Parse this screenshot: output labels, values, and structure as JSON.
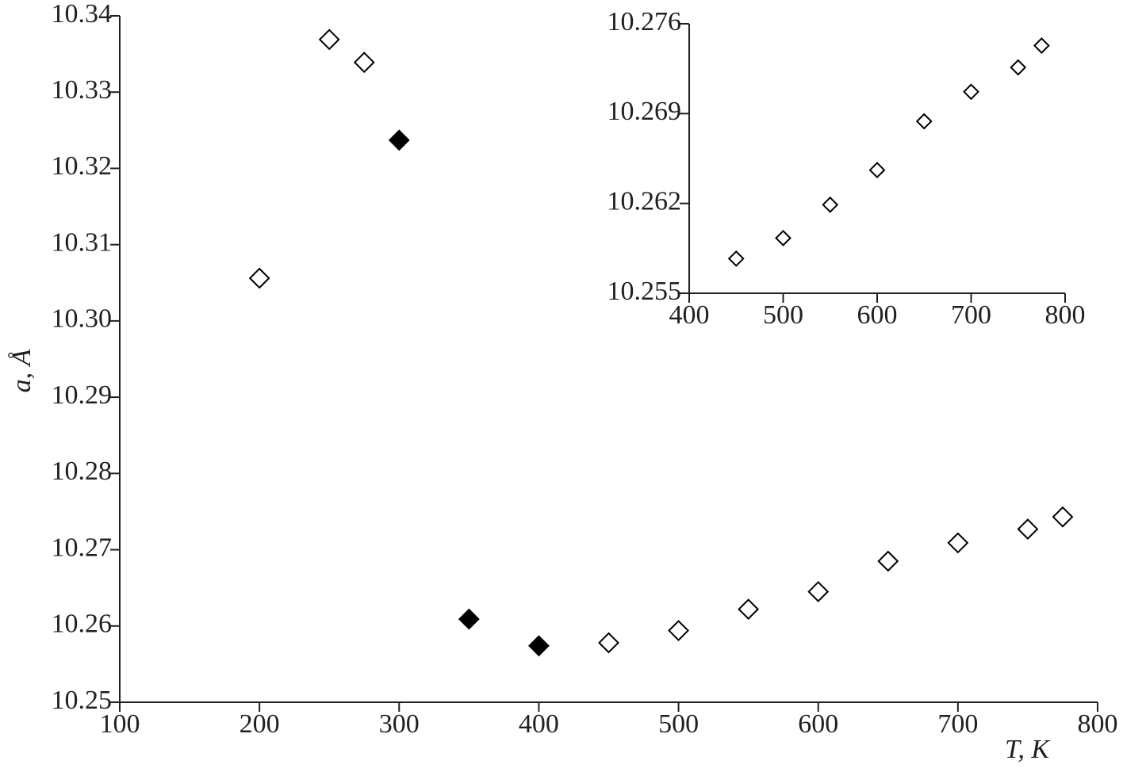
{
  "chart_data": [
    {
      "type": "scatter",
      "xlabel": "T, K",
      "ylabel": "a, Å",
      "xlim": [
        100,
        800
      ],
      "ylim": [
        10.25,
        10.34
      ],
      "xticks": [
        100,
        200,
        300,
        400,
        500,
        600,
        700,
        800
      ],
      "yticks": [
        10.25,
        10.26,
        10.27,
        10.28,
        10.29,
        {
          "value": 10.3,
          "label": "10.30"
        },
        10.31,
        10.32,
        10.33,
        10.34
      ],
      "series": [
        {
          "color": "#000000",
          "marker_fill": "#ffffff",
          "x": [
            200,
            250,
            275,
            450,
            500,
            550,
            600,
            650,
            700,
            750,
            775
          ],
          "values": [
            10.3056,
            10.3369,
            10.3339,
            10.2578,
            10.2594,
            10.2622,
            10.2645,
            10.2685,
            10.2709,
            10.2727,
            10.2743
          ]
        },
        {
          "color": "#000000",
          "marker_fill": "#000000",
          "x": [
            300,
            350,
            400
          ],
          "values": [
            10.3237,
            10.2609,
            10.2574
          ]
        }
      ]
    },
    {
      "type": "scatter",
      "xlim": [
        400,
        800
      ],
      "ylim": [
        10.255,
        10.276
      ],
      "xticks": [
        400,
        500,
        600,
        700,
        800
      ],
      "yticks": [
        10.255,
        10.262,
        10.269,
        10.276
      ],
      "series": [
        {
          "color": "#000000",
          "marker_fill": "#ffffff",
          "x": [
            450,
            500,
            550,
            600,
            650,
            700,
            750,
            775
          ],
          "values": [
            10.2577,
            10.2593,
            10.2619,
            10.2646,
            10.2684,
            10.2707,
            10.2726,
            10.2743
          ]
        }
      ]
    }
  ]
}
